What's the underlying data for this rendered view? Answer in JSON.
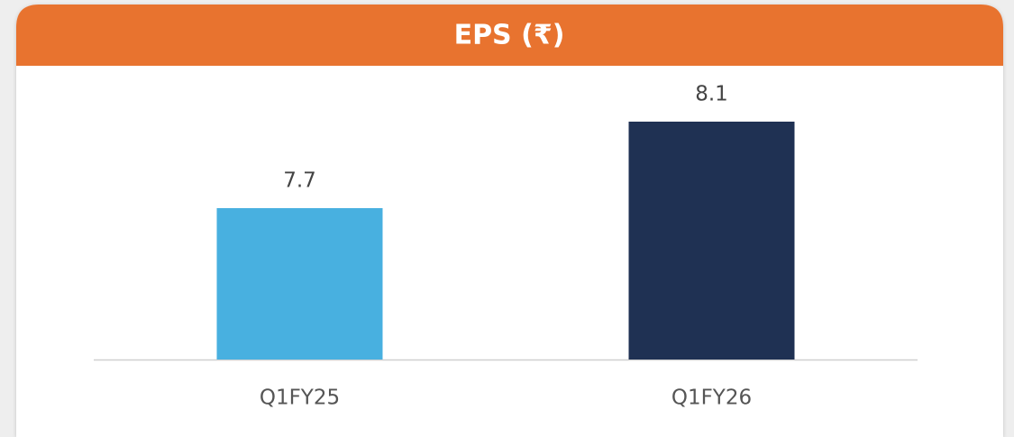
{
  "chart_data": {
    "type": "bar",
    "title": "EPS (₹)",
    "categories": [
      "Q1FY25",
      "Q1FY26"
    ],
    "values": [
      7.7,
      8.1
    ],
    "colors": [
      "#48b0e0",
      "#1f3153"
    ],
    "ylim": [
      7,
      8.3
    ]
  }
}
